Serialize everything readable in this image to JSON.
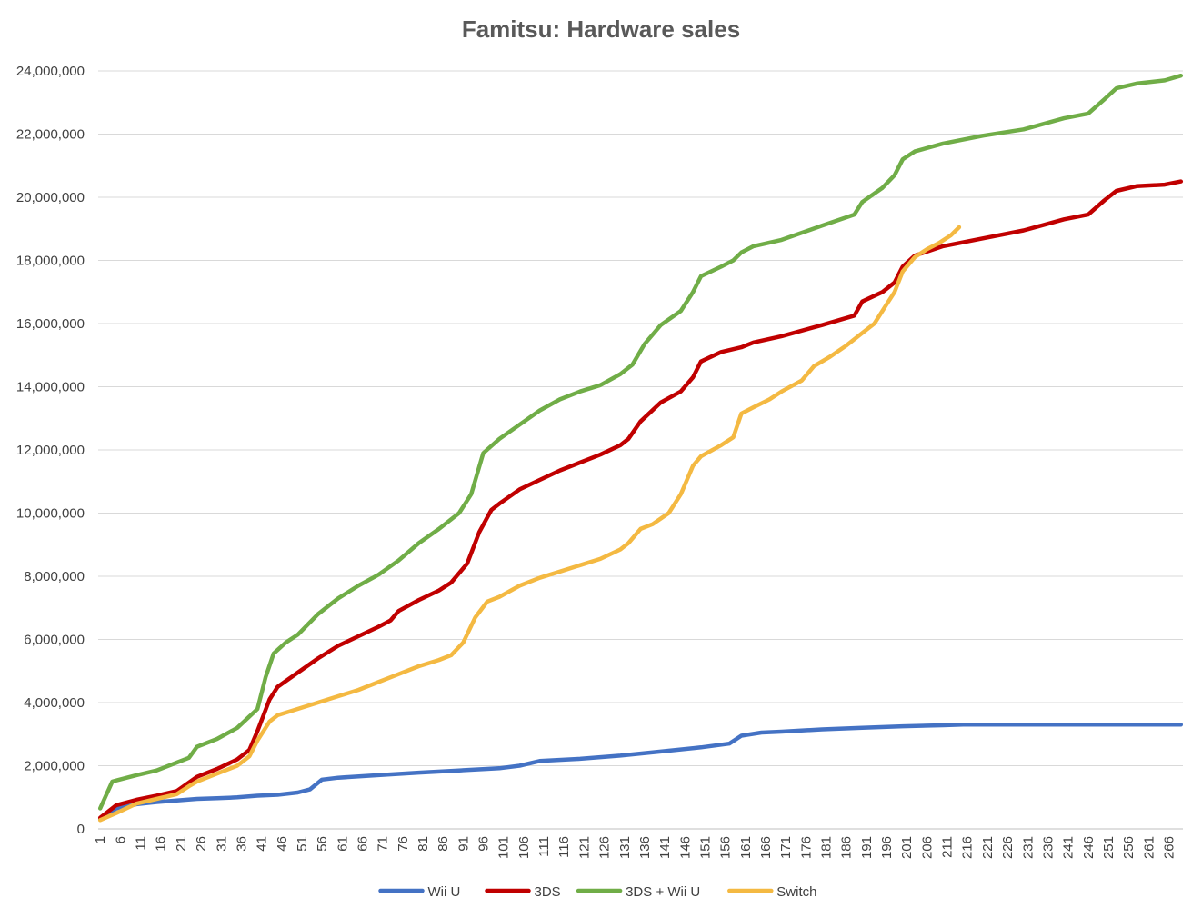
{
  "chart_data": {
    "type": "line",
    "title": "Famitsu: Hardware sales",
    "xlabel": "",
    "ylabel": "",
    "x_range": [
      1,
      269
    ],
    "x_tick_labels": [
      "1",
      "6",
      "11",
      "16",
      "21",
      "26",
      "31",
      "36",
      "41",
      "46",
      "51",
      "56",
      "61",
      "66",
      "71",
      "76",
      "81",
      "86",
      "91",
      "96",
      "101",
      "106",
      "111",
      "116",
      "121",
      "126",
      "131",
      "136",
      "141",
      "146",
      "151",
      "156",
      "161",
      "166",
      "171",
      "176",
      "181",
      "186",
      "191",
      "196",
      "201",
      "206",
      "211",
      "216",
      "221",
      "226",
      "231",
      "236",
      "241",
      "246",
      "251",
      "256",
      "261",
      "266"
    ],
    "ylim": [
      0,
      24000000
    ],
    "y_tick_labels": [
      "0",
      "2,000,000",
      "4,000,000",
      "6,000,000",
      "8,000,000",
      "10,000,000",
      "12,000,000",
      "14,000,000",
      "16,000,000",
      "18,000,000",
      "20,000,000",
      "22,000,000",
      "24,000,000"
    ],
    "grid": "horizontal",
    "legend_position": "bottom",
    "series": [
      {
        "name": "Wii U",
        "color": "#4472c4",
        "points": [
          [
            1,
            300000
          ],
          [
            5,
            650000
          ],
          [
            10,
            780000
          ],
          [
            15,
            850000
          ],
          [
            20,
            900000
          ],
          [
            25,
            950000
          ],
          [
            30,
            970000
          ],
          [
            35,
            1000000
          ],
          [
            40,
            1050000
          ],
          [
            45,
            1080000
          ],
          [
            50,
            1150000
          ],
          [
            53,
            1250000
          ],
          [
            56,
            1560000
          ],
          [
            60,
            1620000
          ],
          [
            70,
            1700000
          ],
          [
            80,
            1780000
          ],
          [
            90,
            1850000
          ],
          [
            100,
            1920000
          ],
          [
            105,
            2000000
          ],
          [
            110,
            2150000
          ],
          [
            120,
            2220000
          ],
          [
            130,
            2320000
          ],
          [
            140,
            2450000
          ],
          [
            150,
            2580000
          ],
          [
            157,
            2700000
          ],
          [
            160,
            2950000
          ],
          [
            165,
            3050000
          ],
          [
            170,
            3080000
          ],
          [
            180,
            3150000
          ],
          [
            190,
            3200000
          ],
          [
            200,
            3250000
          ],
          [
            210,
            3280000
          ],
          [
            215,
            3300000
          ],
          [
            230,
            3300000
          ],
          [
            250,
            3300000
          ],
          [
            269,
            3300000
          ]
        ]
      },
      {
        "name": "3DS",
        "color": "#c00000",
        "points": [
          [
            1,
            350000
          ],
          [
            5,
            750000
          ],
          [
            10,
            920000
          ],
          [
            15,
            1050000
          ],
          [
            20,
            1200000
          ],
          [
            25,
            1650000
          ],
          [
            30,
            1900000
          ],
          [
            35,
            2200000
          ],
          [
            38,
            2500000
          ],
          [
            40,
            3100000
          ],
          [
            43,
            4100000
          ],
          [
            45,
            4500000
          ],
          [
            50,
            4950000
          ],
          [
            55,
            5400000
          ],
          [
            60,
            5800000
          ],
          [
            65,
            6100000
          ],
          [
            70,
            6400000
          ],
          [
            73,
            6600000
          ],
          [
            75,
            6900000
          ],
          [
            80,
            7250000
          ],
          [
            85,
            7550000
          ],
          [
            88,
            7800000
          ],
          [
            92,
            8400000
          ],
          [
            95,
            9400000
          ],
          [
            98,
            10100000
          ],
          [
            100,
            10300000
          ],
          [
            105,
            10750000
          ],
          [
            110,
            11050000
          ],
          [
            115,
            11350000
          ],
          [
            120,
            11600000
          ],
          [
            125,
            11850000
          ],
          [
            130,
            12150000
          ],
          [
            132,
            12350000
          ],
          [
            135,
            12900000
          ],
          [
            140,
            13500000
          ],
          [
            145,
            13850000
          ],
          [
            148,
            14300000
          ],
          [
            150,
            14800000
          ],
          [
            155,
            15100000
          ],
          [
            160,
            15250000
          ],
          [
            163,
            15400000
          ],
          [
            170,
            15600000
          ],
          [
            180,
            15950000
          ],
          [
            188,
            16250000
          ],
          [
            190,
            16700000
          ],
          [
            195,
            17000000
          ],
          [
            198,
            17300000
          ],
          [
            200,
            17800000
          ],
          [
            203,
            18150000
          ],
          [
            210,
            18450000
          ],
          [
            220,
            18700000
          ],
          [
            230,
            18950000
          ],
          [
            240,
            19300000
          ],
          [
            246,
            19450000
          ],
          [
            250,
            19900000
          ],
          [
            253,
            20200000
          ],
          [
            258,
            20350000
          ],
          [
            265,
            20400000
          ],
          [
            269,
            20500000
          ]
        ]
      },
      {
        "name": "3DS + Wii U",
        "color": "#70ad47",
        "points": [
          [
            1,
            650000
          ],
          [
            4,
            1500000
          ],
          [
            10,
            1700000
          ],
          [
            15,
            1850000
          ],
          [
            20,
            2100000
          ],
          [
            23,
            2250000
          ],
          [
            25,
            2600000
          ],
          [
            30,
            2850000
          ],
          [
            35,
            3200000
          ],
          [
            40,
            3800000
          ],
          [
            42,
            4800000
          ],
          [
            44,
            5550000
          ],
          [
            47,
            5900000
          ],
          [
            50,
            6150000
          ],
          [
            55,
            6800000
          ],
          [
            60,
            7300000
          ],
          [
            65,
            7700000
          ],
          [
            70,
            8050000
          ],
          [
            75,
            8500000
          ],
          [
            80,
            9050000
          ],
          [
            85,
            9500000
          ],
          [
            90,
            10000000
          ],
          [
            93,
            10600000
          ],
          [
            96,
            11900000
          ],
          [
            100,
            12350000
          ],
          [
            105,
            12800000
          ],
          [
            110,
            13250000
          ],
          [
            115,
            13600000
          ],
          [
            120,
            13850000
          ],
          [
            125,
            14050000
          ],
          [
            130,
            14400000
          ],
          [
            133,
            14700000
          ],
          [
            136,
            15350000
          ],
          [
            140,
            15950000
          ],
          [
            145,
            16400000
          ],
          [
            148,
            17000000
          ],
          [
            150,
            17500000
          ],
          [
            155,
            17800000
          ],
          [
            158,
            18000000
          ],
          [
            160,
            18250000
          ],
          [
            163,
            18450000
          ],
          [
            170,
            18650000
          ],
          [
            180,
            19100000
          ],
          [
            188,
            19450000
          ],
          [
            190,
            19850000
          ],
          [
            195,
            20300000
          ],
          [
            198,
            20700000
          ],
          [
            200,
            21200000
          ],
          [
            203,
            21450000
          ],
          [
            210,
            21700000
          ],
          [
            220,
            21950000
          ],
          [
            230,
            22150000
          ],
          [
            240,
            22500000
          ],
          [
            246,
            22650000
          ],
          [
            250,
            23100000
          ],
          [
            253,
            23450000
          ],
          [
            258,
            23600000
          ],
          [
            265,
            23700000
          ],
          [
            269,
            23850000
          ]
        ]
      },
      {
        "name": "Switch",
        "color": "#f4b942",
        "points": [
          [
            1,
            280000
          ],
          [
            5,
            500000
          ],
          [
            10,
            800000
          ],
          [
            15,
            950000
          ],
          [
            20,
            1100000
          ],
          [
            23,
            1350000
          ],
          [
            25,
            1500000
          ],
          [
            30,
            1750000
          ],
          [
            35,
            2000000
          ],
          [
            38,
            2300000
          ],
          [
            40,
            2800000
          ],
          [
            43,
            3400000
          ],
          [
            45,
            3600000
          ],
          [
            50,
            3800000
          ],
          [
            55,
            4000000
          ],
          [
            60,
            4200000
          ],
          [
            65,
            4400000
          ],
          [
            70,
            4650000
          ],
          [
            75,
            4900000
          ],
          [
            80,
            5150000
          ],
          [
            85,
            5350000
          ],
          [
            88,
            5500000
          ],
          [
            91,
            5900000
          ],
          [
            94,
            6700000
          ],
          [
            97,
            7200000
          ],
          [
            100,
            7350000
          ],
          [
            105,
            7700000
          ],
          [
            110,
            7950000
          ],
          [
            115,
            8150000
          ],
          [
            120,
            8350000
          ],
          [
            125,
            8550000
          ],
          [
            130,
            8850000
          ],
          [
            132,
            9050000
          ],
          [
            135,
            9500000
          ],
          [
            138,
            9650000
          ],
          [
            142,
            10000000
          ],
          [
            145,
            10600000
          ],
          [
            148,
            11500000
          ],
          [
            150,
            11800000
          ],
          [
            155,
            12150000
          ],
          [
            158,
            12400000
          ],
          [
            160,
            13150000
          ],
          [
            163,
            13350000
          ],
          [
            167,
            13600000
          ],
          [
            170,
            13850000
          ],
          [
            175,
            14200000
          ],
          [
            178,
            14650000
          ],
          [
            182,
            14950000
          ],
          [
            186,
            15300000
          ],
          [
            190,
            15700000
          ],
          [
            193,
            16000000
          ],
          [
            196,
            16600000
          ],
          [
            198,
            17000000
          ],
          [
            200,
            17650000
          ],
          [
            203,
            18100000
          ],
          [
            206,
            18350000
          ],
          [
            209,
            18550000
          ],
          [
            212,
            18800000
          ],
          [
            214,
            19050000
          ]
        ]
      }
    ]
  }
}
